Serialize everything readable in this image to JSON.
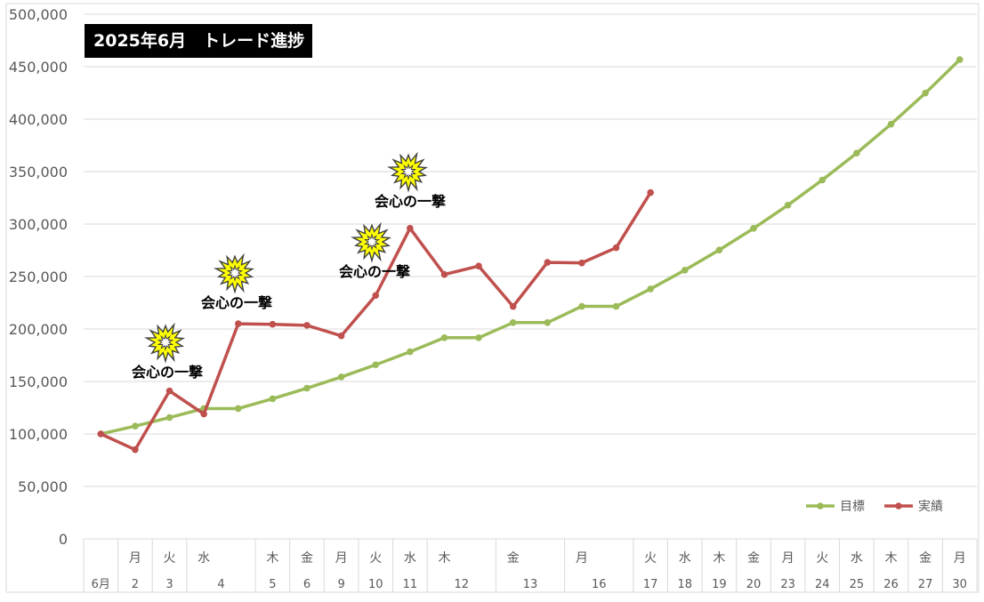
{
  "chart_data": {
    "type": "line",
    "title": "2025年6月　トレード進捗",
    "ylim": [
      0,
      500000
    ],
    "yticks": [
      "0",
      "50,000",
      "100,000",
      "150,000",
      "200,000",
      "250,000",
      "300,000",
      "350,000",
      "400,000",
      "450,000",
      "500,000"
    ],
    "grid": true,
    "legend": "bottom-right",
    "categories": [
      {
        "wd": "",
        "d": "6月"
      },
      {
        "wd": "月",
        "d": "2"
      },
      {
        "wd": "火",
        "d": "3"
      },
      {
        "wd": "水",
        "d": "4"
      },
      {
        "wd": "",
        "d": ""
      },
      {
        "wd": "木",
        "d": "5"
      },
      {
        "wd": "金",
        "d": "6"
      },
      {
        "wd": "月",
        "d": "9"
      },
      {
        "wd": "火",
        "d": "10"
      },
      {
        "wd": "水",
        "d": "11"
      },
      {
        "wd": "木",
        "d": "12"
      },
      {
        "wd": "",
        "d": ""
      },
      {
        "wd": "金",
        "d": "13"
      },
      {
        "wd": "",
        "d": ""
      },
      {
        "wd": "月",
        "d": "16"
      },
      {
        "wd": "",
        "d": ""
      },
      {
        "wd": "火",
        "d": "17"
      },
      {
        "wd": "水",
        "d": "18"
      },
      {
        "wd": "木",
        "d": "19"
      },
      {
        "wd": "金",
        "d": "20"
      },
      {
        "wd": "月",
        "d": "23"
      },
      {
        "wd": "火",
        "d": "24"
      },
      {
        "wd": "水",
        "d": "25"
      },
      {
        "wd": "木",
        "d": "26"
      },
      {
        "wd": "金",
        "d": "27"
      },
      {
        "wd": "月",
        "d": "30"
      }
    ],
    "series": [
      {
        "name": "目標",
        "color": "#9bbb59",
        "values": [
          100000,
          107500,
          115600,
          124200,
          124200,
          133500,
          143600,
          154300,
          165900,
          178300,
          191700,
          191700,
          206100,
          206100,
          221600,
          221600,
          238200,
          256100,
          275300,
          295900,
          318100,
          342000,
          367600,
          395200,
          424800,
          456700
        ]
      },
      {
        "name": "実績",
        "color": "#c0504d",
        "values": [
          100000,
          85000,
          141000,
          119000,
          205000,
          204500,
          203500,
          193500,
          232000,
          296000,
          252000,
          260000,
          221500,
          263500,
          263000,
          277500,
          330000,
          null,
          null,
          null,
          null,
          null,
          null,
          null,
          null,
          null
        ]
      }
    ],
    "annotations": [
      {
        "label": "会心の一撃",
        "at": 2
      },
      {
        "label": "会心の一撃",
        "at": 4
      },
      {
        "label": "会心の一撃",
        "at": 8
      },
      {
        "label": "会心の一撃",
        "at": 9
      }
    ]
  }
}
